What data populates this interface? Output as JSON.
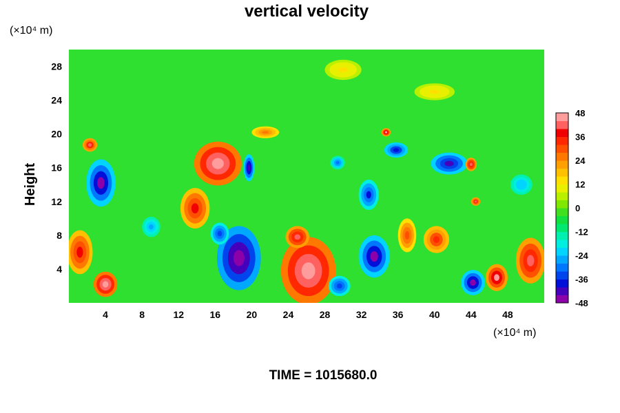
{
  "chart_data": {
    "type": "heatmap",
    "title": "vertical velocity",
    "ylabel": "Height",
    "y_unit": "(×10⁴ m)",
    "x_unit": "(×10⁴ m)",
    "x_ticks": [
      "4",
      "8",
      "12",
      "16",
      "20",
      "24",
      "28",
      "32",
      "36",
      "40",
      "44",
      "48"
    ],
    "y_ticks": [
      "4",
      "8",
      "12",
      "16",
      "20",
      "24",
      "28"
    ],
    "xlim": [
      0,
      52
    ],
    "ylim": [
      0,
      30
    ],
    "colorbar": {
      "range": [
        -48,
        48
      ],
      "step": 4,
      "tick_labels": [
        "48",
        "36",
        "24",
        "12",
        "0",
        "-12",
        "-24",
        "-36",
        "-48"
      ],
      "colors_low_to_high": [
        "#8c00aa",
        "#4400bb",
        "#0010d8",
        "#0044ee",
        "#0077ff",
        "#00a8ff",
        "#00d4ff",
        "#00eee0",
        "#00f0b0",
        "#00e870",
        "#10e040",
        "#40e020",
        "#80e800",
        "#b8f000",
        "#e8f000",
        "#ffe000",
        "#ffc000",
        "#ffa000",
        "#ff7800",
        "#ff5000",
        "#ff2800",
        "#f00000",
        "#ff6060",
        "#ff9c9c"
      ]
    },
    "features": [
      {
        "x": 3.5,
        "y": 14.2,
        "rx": 1.6,
        "ry": 2.8,
        "w": -46
      },
      {
        "x": 2.3,
        "y": 18.7,
        "rx": 0.8,
        "ry": 0.8,
        "w": 40
      },
      {
        "x": 16.3,
        "y": 16.5,
        "rx": 2.6,
        "ry": 2.6,
        "w": 48
      },
      {
        "x": 13.8,
        "y": 11.2,
        "rx": 1.6,
        "ry": 2.4,
        "w": 38
      },
      {
        "x": 19.7,
        "y": 16.0,
        "rx": 0.6,
        "ry": 1.6,
        "w": -44
      },
      {
        "x": 18.6,
        "y": 5.3,
        "rx": 2.4,
        "ry": 3.8,
        "w": -48
      },
      {
        "x": 16.5,
        "y": 8.2,
        "rx": 1.0,
        "ry": 1.3,
        "w": -36
      },
      {
        "x": 26.2,
        "y": 3.8,
        "rx": 3.0,
        "ry": 4.0,
        "w": 48
      },
      {
        "x": 25.0,
        "y": 7.8,
        "rx": 1.3,
        "ry": 1.3,
        "w": 42
      },
      {
        "x": 33.4,
        "y": 5.5,
        "rx": 1.7,
        "ry": 2.5,
        "w": -46
      },
      {
        "x": 32.8,
        "y": 12.8,
        "rx": 1.1,
        "ry": 1.8,
        "w": -38
      },
      {
        "x": 35.8,
        "y": 18.1,
        "rx": 1.3,
        "ry": 0.9,
        "w": -40
      },
      {
        "x": 34.7,
        "y": 20.2,
        "rx": 0.5,
        "ry": 0.5,
        "w": 44
      },
      {
        "x": 41.6,
        "y": 16.5,
        "rx": 2.0,
        "ry": 1.3,
        "w": -42
      },
      {
        "x": 44.2,
        "y": 2.4,
        "rx": 1.3,
        "ry": 1.5,
        "w": -46
      },
      {
        "x": 46.8,
        "y": 3.0,
        "rx": 1.2,
        "ry": 1.6,
        "w": 46
      },
      {
        "x": 50.5,
        "y": 5.0,
        "rx": 1.6,
        "ry": 2.7,
        "w": 42
      },
      {
        "x": 4.0,
        "y": 2.2,
        "rx": 1.3,
        "ry": 1.5,
        "w": 48
      },
      {
        "x": 1.2,
        "y": 6.0,
        "rx": 1.4,
        "ry": 2.6,
        "w": 36
      },
      {
        "x": 40.2,
        "y": 7.5,
        "rx": 1.4,
        "ry": 1.6,
        "w": 34
      },
      {
        "x": 29.6,
        "y": 2.0,
        "rx": 1.2,
        "ry": 1.2,
        "w": -36
      },
      {
        "x": 44.5,
        "y": 12.0,
        "rx": 0.5,
        "ry": 0.5,
        "w": 40
      },
      {
        "x": 44.0,
        "y": 16.4,
        "rx": 0.6,
        "ry": 0.8,
        "w": 42
      },
      {
        "x": 29.4,
        "y": 16.6,
        "rx": 0.8,
        "ry": 0.8,
        "w": -30
      },
      {
        "x": 30.0,
        "y": 27.6,
        "rx": 2.0,
        "ry": 1.2,
        "w": 14
      },
      {
        "x": 40.0,
        "y": 25.0,
        "rx": 2.2,
        "ry": 1.0,
        "w": 14
      },
      {
        "x": 37.0,
        "y": 8.0,
        "rx": 1.0,
        "ry": 2.0,
        "w": 30
      },
      {
        "x": 21.5,
        "y": 20.2,
        "rx": 1.5,
        "ry": 0.7,
        "w": 24
      },
      {
        "x": 49.5,
        "y": 14.0,
        "rx": 1.2,
        "ry": 1.2,
        "w": -24
      },
      {
        "x": 9.0,
        "y": 9.0,
        "rx": 1.0,
        "ry": 1.2,
        "w": -28
      }
    ]
  },
  "footer": {
    "time_label": "TIME = 1015680.0"
  }
}
